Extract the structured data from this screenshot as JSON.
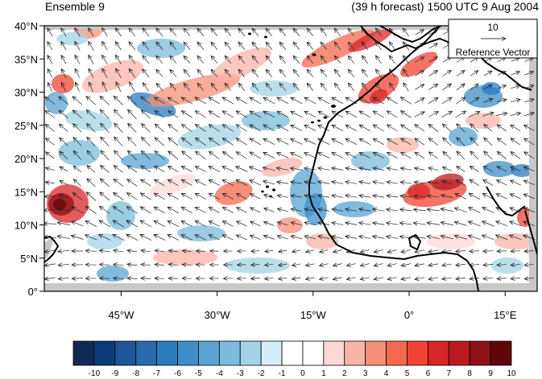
{
  "header": {
    "left_title": "Ensemble 9",
    "right_title": "(39 h forecast) 1500 UTC 9 Aug 2004"
  },
  "map": {
    "lon_range": [
      -57,
      20
    ],
    "lat_range": [
      0,
      40
    ],
    "lat_ticks": [
      {
        "value": 0,
        "label": "0°"
      },
      {
        "value": 5,
        "label": "5°N"
      },
      {
        "value": 10,
        "label": "10°N"
      },
      {
        "value": 15,
        "label": "15°N"
      },
      {
        "value": 20,
        "label": "20°N"
      },
      {
        "value": 25,
        "label": "25°N"
      },
      {
        "value": 30,
        "label": "30°N"
      },
      {
        "value": 35,
        "label": "35°N"
      },
      {
        "value": 40,
        "label": "40°N"
      }
    ],
    "lon_ticks": [
      {
        "value": -45,
        "label": "45°W"
      },
      {
        "value": -30,
        "label": "30°W"
      },
      {
        "value": -15,
        "label": "15°W"
      },
      {
        "value": 0,
        "label": "0°"
      },
      {
        "value": 15,
        "label": "15°E"
      }
    ],
    "reference_vector": {
      "value": "10",
      "label": "Reference Vector"
    },
    "land_mask_color": "#c8c8c8",
    "coast_color": "#000000"
  },
  "colorbar": {
    "labels": [
      "-10",
      "-9",
      "-8",
      "-7",
      "-6",
      "-5",
      "-4",
      "-3",
      "-2",
      "-1",
      "0",
      "1",
      "2",
      "3",
      "4",
      "5",
      "6",
      "7",
      "8",
      "9",
      "10"
    ],
    "colors": [
      "#0d2a55",
      "#0b3c78",
      "#1d5596",
      "#2a6aac",
      "#2b7bbf",
      "#3e8fc9",
      "#5aa4d4",
      "#7bbcdc",
      "#a3d3e6",
      "#d6eef8",
      "#ffffff",
      "#ffffff",
      "#fcd9d7",
      "#f9b4a8",
      "#f69078",
      "#f36a4e",
      "#ef4433",
      "#d82528",
      "#b81a20",
      "#8c1016",
      "#5e0608"
    ]
  }
}
